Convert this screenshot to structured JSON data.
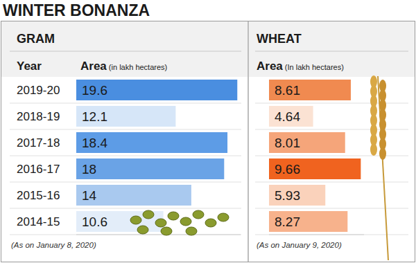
{
  "title": "WINTER BONANZA",
  "chart_data": [
    {
      "type": "bar",
      "orientation": "horizontal",
      "title": "GRAM",
      "ylabel": "Year",
      "xlabel": "Area (in lakh hectares)",
      "annotations": [
        "(As on January 8, 2020)"
      ],
      "categories": [
        "2019-20",
        "2018-19",
        "2017-18",
        "2016-17",
        "2015-16",
        "2014-15"
      ],
      "values": [
        19.6,
        12.1,
        18.4,
        18,
        14,
        10.6
      ],
      "colors": [
        "#4a8ee0",
        "#d6e6f8",
        "#5d9ce6",
        "#6aa3e6",
        "#a9c9ef",
        "#e3edf9"
      ],
      "xlim": [
        0,
        20
      ],
      "data_labels": true,
      "tick_labels": "y"
    },
    {
      "type": "bar",
      "orientation": "horizontal",
      "title": "WHEAT",
      "xlabel": "Area (In lakh hectares)",
      "annotations": [
        "(As on January 9, 2020)"
      ],
      "categories": [
        null,
        null,
        null,
        null,
        null,
        null
      ],
      "values": [
        8.61,
        4.64,
        8.01,
        9.66,
        5.93,
        8.27
      ],
      "colors": [
        "#f08a50",
        "#fbe2d3",
        "#f5a57a",
        "#f0631f",
        "#fad2bb",
        "#f7b28c"
      ],
      "xlim": [
        0,
        10
      ],
      "data_labels": true,
      "tick_labels": false
    }
  ]
}
